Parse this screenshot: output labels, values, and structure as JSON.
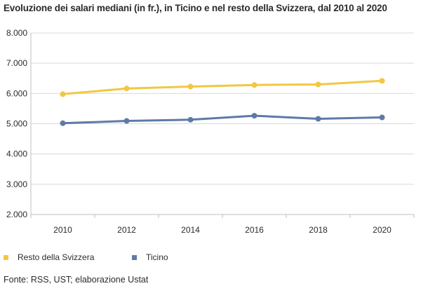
{
  "chart_data": {
    "type": "line",
    "title": "Evoluzione dei salari mediani (in fr.), in Ticino e nel resto della Svizzera, dal 2010 al 2020",
    "xlabel": "",
    "ylabel": "",
    "x": [
      "2010",
      "2012",
      "2014",
      "2016",
      "2018",
      "2020"
    ],
    "ylim": [
      2000,
      8000
    ],
    "yticks": [
      2000,
      3000,
      4000,
      5000,
      6000,
      7000,
      8000
    ],
    "ytick_labels": [
      "2.000",
      "3.000",
      "4.000",
      "5.000",
      "6.000",
      "7.000",
      "8.000"
    ],
    "grid": "horizontal",
    "legend_position": "bottom",
    "series": [
      {
        "name": "Resto della Svizzera",
        "color": "#F2C744",
        "values": [
          5978,
          6166,
          6227,
          6280,
          6297,
          6417
        ]
      },
      {
        "name": "Ticino",
        "color": "#5D7BA6",
        "values": [
          5016,
          5092,
          5131,
          5264,
          5162,
          5208
        ]
      }
    ],
    "source": "Fonte: RSS, UST; elaborazione Ustat"
  }
}
